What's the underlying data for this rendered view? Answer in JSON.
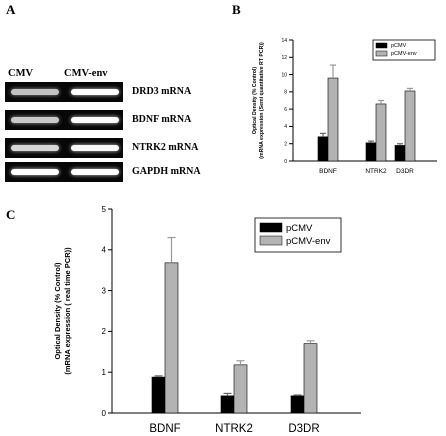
{
  "panels": {
    "a": {
      "letter": "A"
    },
    "b": {
      "letter": "B"
    },
    "c": {
      "letter": "C"
    }
  },
  "gel": {
    "col_left": "CMV",
    "col_right": "CMV-env",
    "rows": [
      {
        "label": "DRD3 mRNA",
        "left_intensity": 0.55,
        "right_intensity": 1.0
      },
      {
        "label": "BDNF mRNA",
        "left_intensity": 0.6,
        "right_intensity": 1.0
      },
      {
        "label": "NTRK2 mRNA",
        "left_intensity": 0.7,
        "right_intensity": 0.95
      },
      {
        "label": "GAPDH mRNA",
        "left_intensity": 1.0,
        "right_intensity": 1.0
      }
    ]
  },
  "colors": {
    "pCMV": "#000000",
    "pCMV-env": "#b3b3b3"
  },
  "chart_data": [
    {
      "type": "bar",
      "panel": "B",
      "categories": [
        "BDNF",
        "NTRK2",
        "D3DR"
      ],
      "series": [
        {
          "name": "pCMV",
          "values": [
            2.8,
            2.1,
            1.8
          ],
          "errors": [
            0.4,
            0.2,
            0.2
          ]
        },
        {
          "name": "pCMV-env",
          "values": [
            9.6,
            6.6,
            8.1
          ],
          "errors": [
            1.5,
            0.4,
            0.3
          ]
        }
      ],
      "ylabel": "Optical Density (% Control)",
      "ylabel2": "(mRNA expression (Semi quantitative RT PCR))",
      "ylim": [
        0,
        14
      ],
      "yticks": [
        "0",
        "2",
        "4",
        "6",
        "8",
        "10",
        "12",
        "14"
      ],
      "legend": [
        "pCMV",
        "pCMV-env"
      ],
      "legend_position": "top-right",
      "grid": false
    },
    {
      "type": "bar",
      "panel": "C",
      "categories": [
        "BDNF",
        "NTRK2",
        "D3DR"
      ],
      "series": [
        {
          "name": "pCMV",
          "values": [
            0.88,
            0.42,
            0.42
          ],
          "errors": [
            0.03,
            0.06,
            0.02
          ]
        },
        {
          "name": "pCMV-env",
          "values": [
            3.68,
            1.18,
            1.7
          ],
          "errors": [
            0.62,
            0.1,
            0.07
          ]
        }
      ],
      "ylabel": "Optical Density (% Control)",
      "ylabel2": "(mRNA expression ( real time PCR))",
      "ylim": [
        0,
        5
      ],
      "yticks": [
        "0",
        "1",
        "2",
        "3",
        "4",
        "5"
      ],
      "legend": [
        "pCMV",
        "pCMV-env"
      ],
      "legend_position": "top-right",
      "grid": false
    }
  ]
}
